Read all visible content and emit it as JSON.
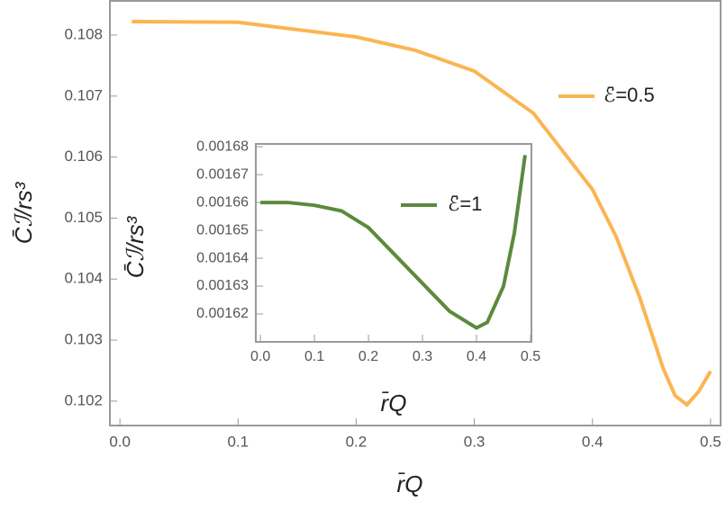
{
  "chart_data": [
    {
      "type": "line",
      "x": [
        0.01,
        0.1,
        0.2,
        0.25,
        0.3,
        0.35,
        0.4,
        0.42,
        0.44,
        0.46,
        0.47,
        0.48,
        0.49,
        0.5
      ],
      "series": [
        {
          "name": "ℰ̄=0.5",
          "color": "#fbb552",
          "values": [
            0.10822,
            0.10821,
            0.10797,
            0.10775,
            0.10741,
            0.10672,
            0.10547,
            0.1047,
            0.1037,
            0.10253,
            0.10209,
            0.10194,
            0.10216,
            0.10249
          ]
        }
      ],
      "x_label": "r̄Q",
      "y_label": "C̄ℐ/rs³",
      "xlim": [
        -0.0085,
        0.5085
      ],
      "ylim": [
        0.1016,
        0.10856
      ],
      "xticks": [
        {
          "value": 0,
          "label": "0.0"
        },
        0.1,
        0.2,
        0.3,
        0.4,
        0.5
      ],
      "yticks": [
        0.102,
        0.103,
        0.104,
        0.105,
        0.106,
        0.107,
        0.108
      ]
    },
    {
      "type": "line",
      "x": [
        0,
        0.05,
        0.1,
        0.15,
        0.2,
        0.25,
        0.3,
        0.35,
        0.4,
        0.42,
        0.45,
        0.47,
        0.49
      ],
      "series": [
        {
          "name": "ℰ̄=1",
          "color": "#5b8a3c",
          "values": [
            0.00166,
            0.00166,
            0.001659,
            0.001657,
            0.001651,
            0.001641,
            0.001631,
            0.001621,
            0.001615,
            0.001617,
            0.00163,
            0.001649,
            0.001677
          ]
        }
      ],
      "x_label": "r̄Q",
      "y_label": "C̄ℐ/rs³",
      "xlim": [
        -0.0085,
        0.5017
      ],
      "ylim": [
        0.00161,
        0.001681
      ],
      "xticks": [
        {
          "value": 0,
          "label": "0.0"
        },
        0.1,
        0.2,
        0.3,
        0.4,
        0.5
      ],
      "yticks": [
        0.00162,
        0.00163,
        0.00164,
        0.00165,
        0.00166,
        0.00167,
        0.00168
      ]
    }
  ]
}
